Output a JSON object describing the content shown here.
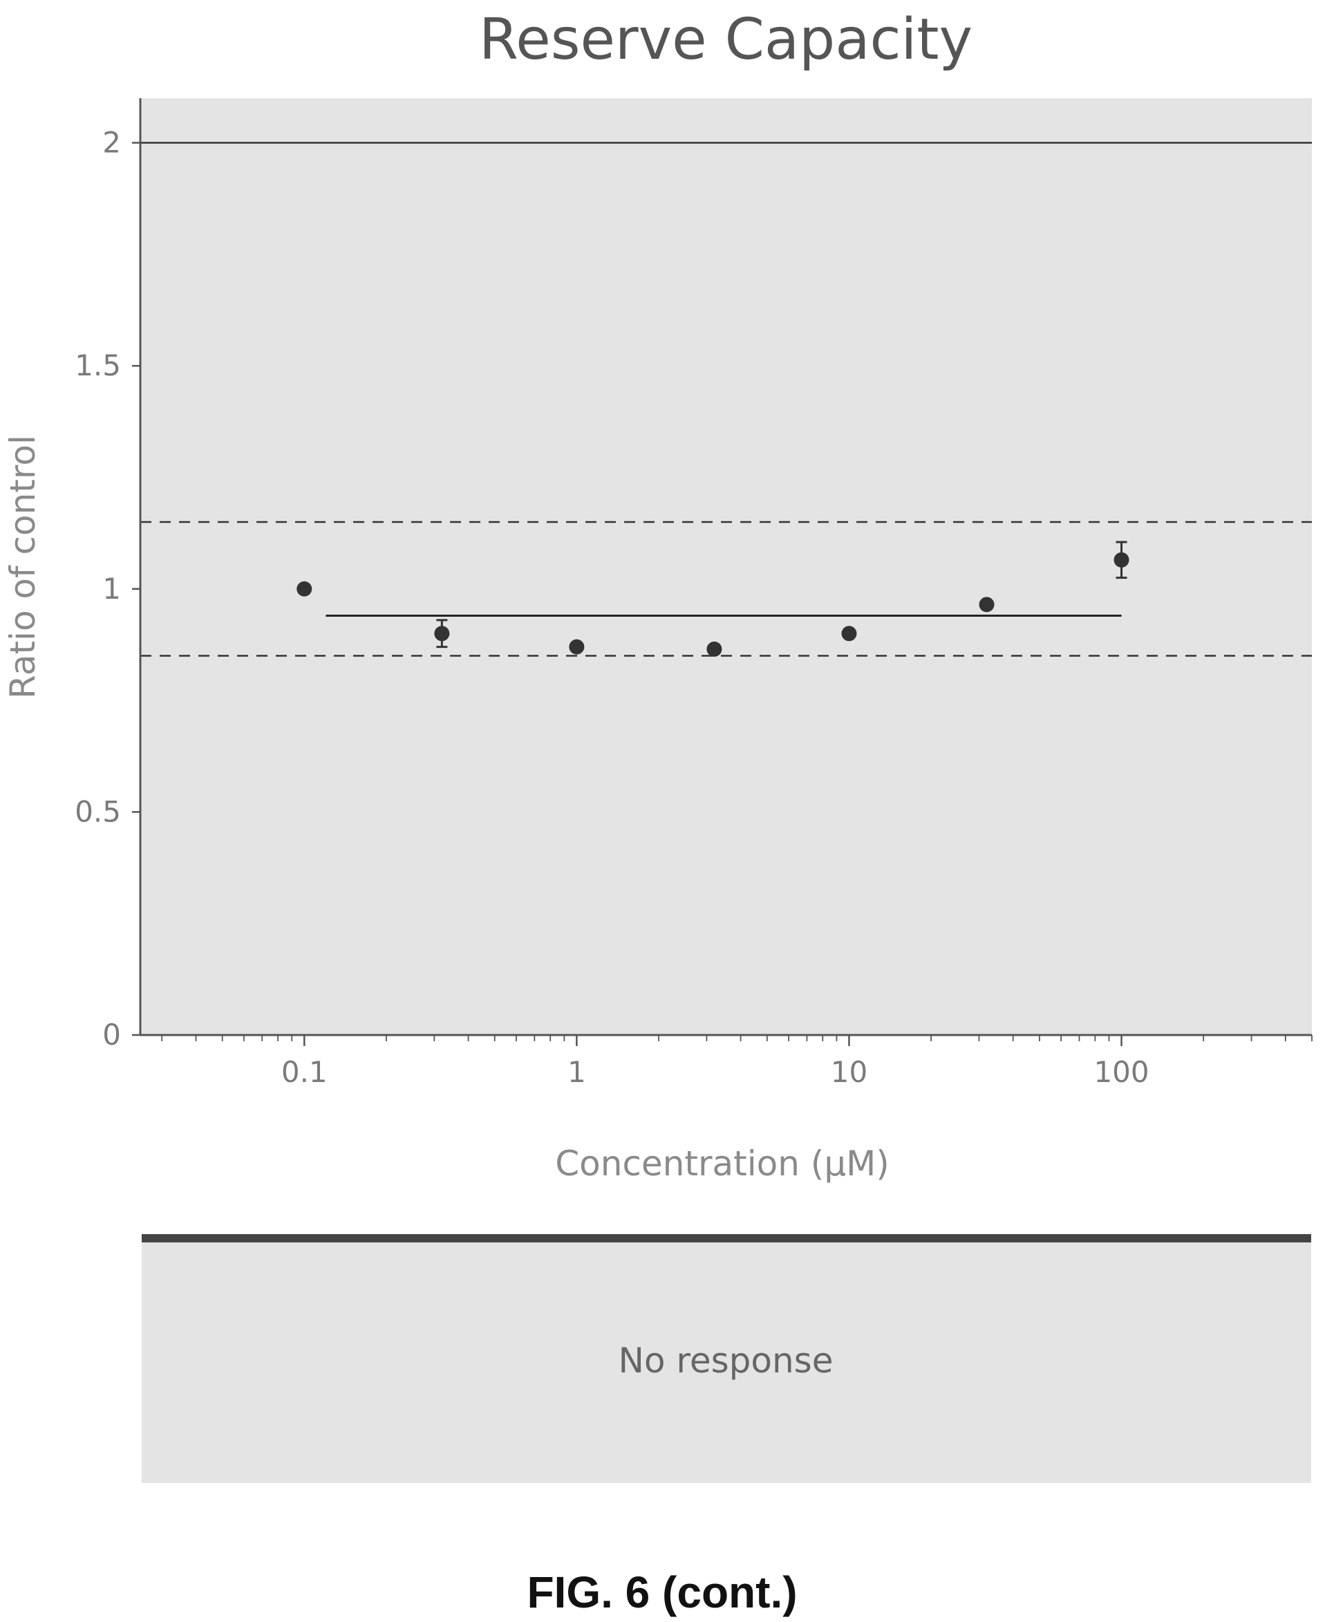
{
  "chart_data": {
    "type": "scatter",
    "title": "Reserve Capacity",
    "xlabel": "Concentration (µM)",
    "ylabel": "Ratio of control",
    "xscale": "log",
    "xlim": [
      0.025,
      500
    ],
    "ylim": [
      0,
      2.1
    ],
    "xticks": [
      0.1,
      1,
      10,
      100
    ],
    "xtick_labels": [
      "0.1",
      "1",
      "10",
      "100"
    ],
    "yticks": [
      0,
      0.5,
      1,
      1.5,
      2
    ],
    "ytick_labels": [
      "0",
      "0.5",
      "1",
      "1.5",
      "2"
    ],
    "grid": false,
    "points": [
      {
        "x": 0.1,
        "y": 1.0,
        "err": 0.0
      },
      {
        "x": 0.32,
        "y": 0.9,
        "err": 0.03
      },
      {
        "x": 1.0,
        "y": 0.87,
        "err": 0.0
      },
      {
        "x": 3.2,
        "y": 0.865,
        "err": 0.0
      },
      {
        "x": 10,
        "y": 0.9,
        "err": 0.0
      },
      {
        "x": 32,
        "y": 0.965,
        "err": 0.0
      },
      {
        "x": 100,
        "y": 1.065,
        "err": 0.04
      }
    ],
    "fit_line": {
      "x": [
        0.12,
        100
      ],
      "y": 0.94
    },
    "reference_lines": [
      {
        "y": 2.0,
        "style": "solid"
      },
      {
        "y": 1.15,
        "style": "dashed"
      },
      {
        "y": 0.85,
        "style": "dashed"
      }
    ]
  },
  "response_panel": {
    "text": "No response"
  },
  "figure_caption": "FIG. 6 (cont.)"
}
